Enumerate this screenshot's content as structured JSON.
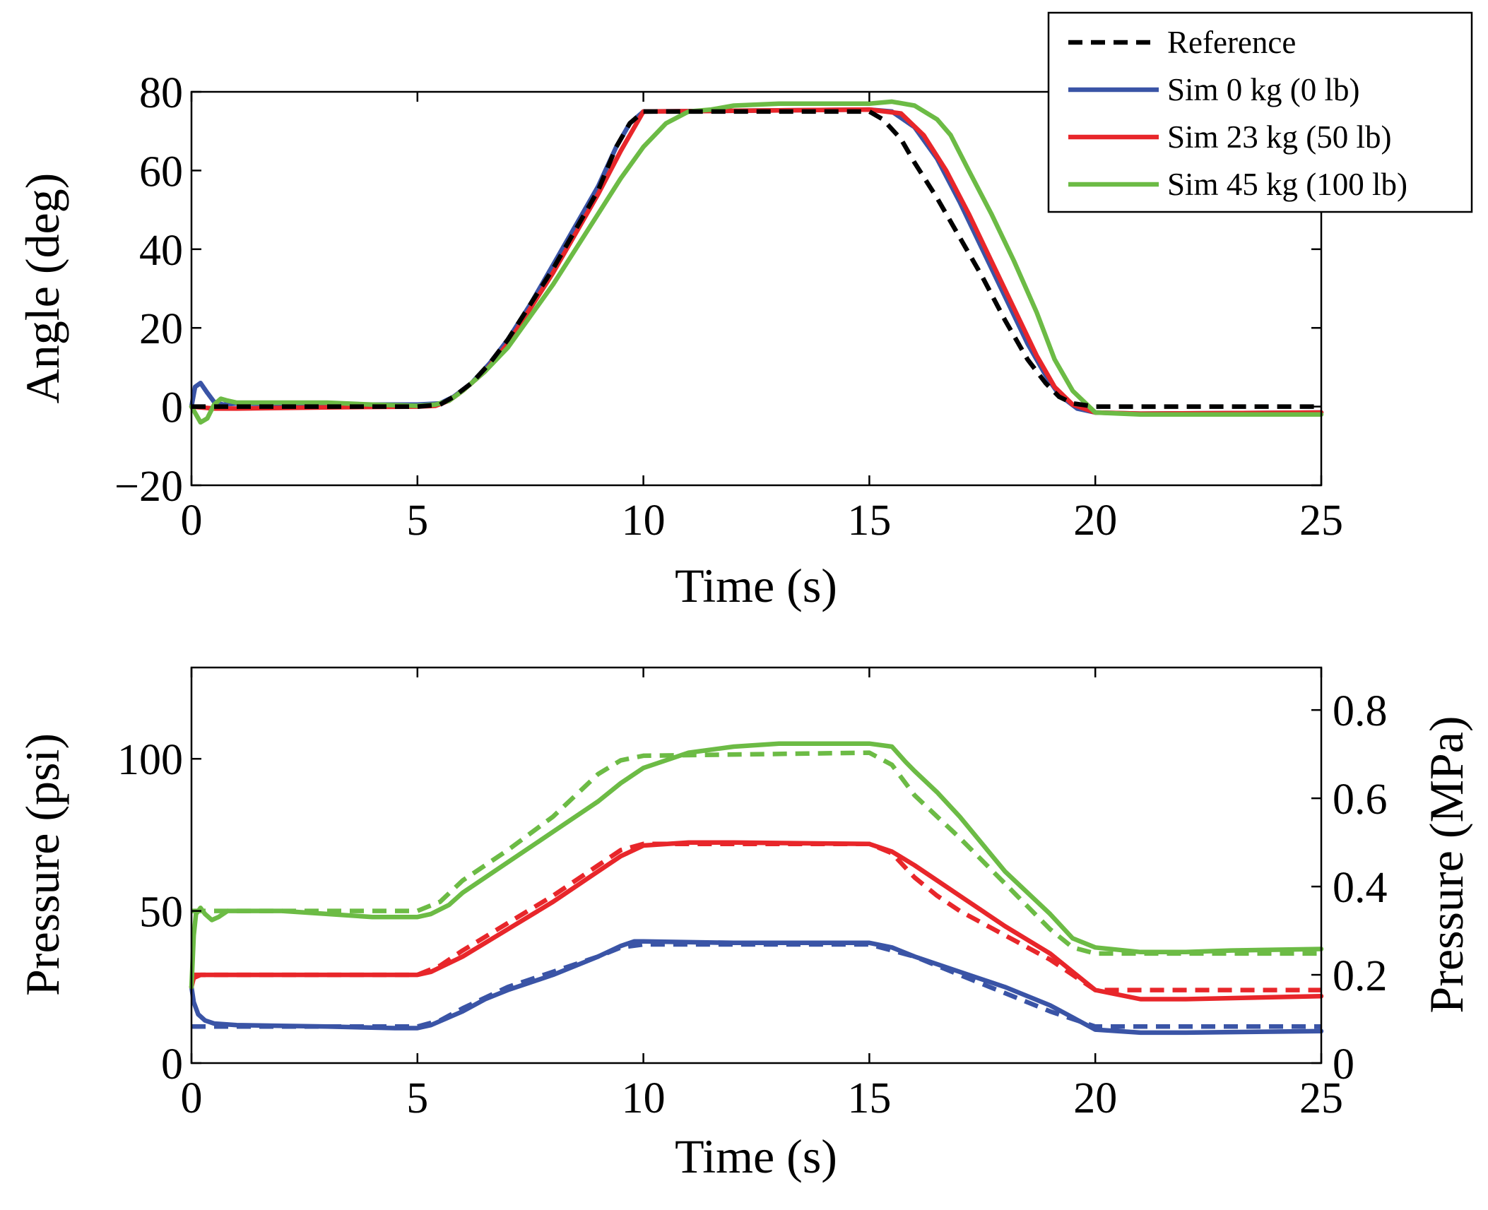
{
  "chart_data": [
    {
      "type": "line",
      "title": "",
      "xlabel": "Time (s)",
      "ylabel": "Angle (deg)",
      "xlim": [
        0,
        25
      ],
      "ylim": [
        -20,
        80
      ],
      "xticks": [
        0,
        5,
        10,
        15,
        20,
        25
      ],
      "xtick_labels": [
        "0",
        "5",
        "10",
        "15",
        "20",
        "25"
      ],
      "yticks": [
        -20,
        0,
        20,
        40,
        60,
        80
      ],
      "ytick_labels": [
        "−20",
        "0",
        "20",
        "40",
        "60",
        "80"
      ],
      "grid": false,
      "legend": {
        "position": "top-right",
        "entries": [
          {
            "label": "Reference",
            "color": "#000000",
            "dash": true
          },
          {
            "label": "Sim 0 kg (0 lb)",
            "color": "#3a54a6",
            "dash": false
          },
          {
            "label": "Sim 23 kg (50 lb)",
            "color": "#e8262a",
            "dash": false
          },
          {
            "label": "Sim 45 kg (100 lb)",
            "color": "#6cbb45",
            "dash": false
          }
        ]
      },
      "series": [
        {
          "name": "Reference",
          "color": "#000000",
          "dash": true,
          "x": [
            0,
            5,
            5.5,
            5.8,
            6.2,
            6.6,
            7,
            7.5,
            8,
            8.5,
            9,
            9.4,
            9.7,
            10,
            15,
            15.3,
            15.7,
            16,
            16.5,
            17,
            17.5,
            18,
            18.5,
            18.9,
            19.2,
            19.5,
            20,
            25
          ],
          "y": [
            0,
            0,
            0.5,
            2.5,
            6,
            11,
            17,
            26,
            35,
            45,
            55,
            66,
            72,
            75,
            75,
            73,
            68,
            62,
            53,
            43,
            33,
            22,
            12,
            6,
            2.5,
            0.8,
            0,
            0
          ]
        },
        {
          "name": "Sim 0 kg (0 lb)",
          "color": "#3a54a6",
          "dash": false,
          "x": [
            0,
            0.08,
            0.2,
            0.35,
            0.5,
            0.7,
            1,
            3,
            5,
            5.5,
            5.8,
            6.2,
            6.6,
            7,
            7.5,
            8,
            8.5,
            9,
            9.4,
            9.7,
            10,
            15,
            15.5,
            16,
            16.5,
            17,
            17.5,
            18,
            18.5,
            18.9,
            19.2,
            19.6,
            20,
            21,
            25
          ],
          "y": [
            0,
            5,
            6,
            3.5,
            1.2,
            0.5,
            0.8,
            0.5,
            0.5,
            0.8,
            2.5,
            6,
            11,
            17,
            26,
            36,
            46,
            56,
            66,
            72,
            75,
            75.5,
            75,
            71,
            63,
            52,
            40,
            28,
            16,
            8,
            3,
            -0.5,
            -1.5,
            -1.8,
            -1.5
          ]
        },
        {
          "name": "Sim 23 kg (50 lb)",
          "color": "#e8262a",
          "dash": false,
          "x": [
            0,
            0.5,
            1,
            3,
            5,
            5.4,
            5.7,
            6,
            6.5,
            7,
            7.5,
            8,
            8.5,
            9,
            9.5,
            10,
            15,
            15.7,
            16.2,
            16.7,
            17.2,
            17.7,
            18.2,
            18.7,
            19.1,
            19.5,
            20,
            21,
            25
          ],
          "y": [
            0,
            -0.5,
            -0.5,
            -0.2,
            0,
            0.2,
            1.5,
            4,
            9,
            16,
            25,
            34,
            44,
            54,
            65,
            75,
            75.5,
            74.5,
            69,
            60,
            49,
            37,
            25,
            13,
            5,
            0.5,
            -1.5,
            -1.8,
            -1.5
          ]
        },
        {
          "name": "Sim 45 kg (100 lb)",
          "color": "#6cbb45",
          "dash": false,
          "x": [
            0,
            0.1,
            0.2,
            0.35,
            0.5,
            0.65,
            0.8,
            1,
            2,
            3,
            4,
            5,
            5.4,
            5.7,
            6,
            6.5,
            7,
            7.5,
            8,
            8.5,
            9,
            9.5,
            10,
            10.5,
            11,
            11.5,
            12,
            13,
            14,
            15,
            15.5,
            16,
            16.5,
            16.8,
            17.2,
            17.7,
            18.2,
            18.7,
            19.1,
            19.5,
            20,
            21,
            25
          ],
          "y": [
            0,
            -2,
            -4,
            -3,
            0.5,
            2,
            1.5,
            1,
            1,
            1,
            0.5,
            0.2,
            0.5,
            1.5,
            4,
            9,
            15,
            23,
            31,
            40,
            49,
            58,
            66,
            72,
            75,
            75.5,
            76.5,
            77,
            77,
            77,
            77.5,
            76.5,
            73,
            69,
            60,
            49,
            37,
            24,
            12,
            4,
            -1.5,
            -2,
            -2
          ]
        }
      ]
    },
    {
      "type": "line",
      "title": "",
      "xlabel": "Time (s)",
      "ylabel": "Pressure (psi)",
      "ylabel_right": "Pressure (MPa)",
      "xlim": [
        0,
        25
      ],
      "ylim": [
        0,
        130
      ],
      "ylim_right": [
        0,
        0.8963
      ],
      "xticks": [
        0,
        5,
        10,
        15,
        20,
        25
      ],
      "xtick_labels": [
        "0",
        "5",
        "10",
        "15",
        "20",
        "25"
      ],
      "yticks": [
        0,
        50,
        100
      ],
      "ytick_labels": [
        "0",
        "50",
        "100"
      ],
      "yticks_right": [
        0,
        0.2,
        0.4,
        0.6,
        0.8
      ],
      "ytick_labels_right": [
        "0",
        "0.2",
        "0.4",
        "0.6",
        "0.8"
      ],
      "grid": false,
      "series": [
        {
          "color": "#3a54a6",
          "dash": true,
          "x": [
            0,
            5,
            5.5,
            6,
            7,
            8,
            9,
            9.5,
            10,
            15,
            16,
            17,
            18,
            19,
            20,
            25
          ],
          "y": [
            12,
            12,
            14,
            18,
            25,
            30,
            35,
            38,
            39,
            39,
            35,
            29,
            23,
            17,
            12,
            12
          ]
        },
        {
          "color": "#3a54a6",
          "dash": false,
          "x": [
            0,
            0.05,
            0.15,
            0.3,
            0.5,
            1,
            3,
            4.5,
            5,
            5.3,
            6,
            6.5,
            7,
            8,
            9,
            9.5,
            9.8,
            10,
            12,
            15,
            15.5,
            16,
            17,
            18,
            19,
            19.5,
            20,
            21,
            22,
            25
          ],
          "y": [
            25,
            20,
            16,
            14,
            13,
            12.5,
            12,
            11.5,
            11.5,
            12.5,
            17,
            21,
            24,
            29,
            35,
            38.5,
            40,
            40,
            39.5,
            39.5,
            38,
            35,
            30,
            25,
            19,
            15,
            11,
            10,
            10,
            10.5
          ]
        },
        {
          "color": "#e8262a",
          "dash": true,
          "x": [
            0,
            5,
            5.5,
            6,
            7,
            8,
            9,
            9.5,
            10,
            15,
            15.5,
            16,
            16.5,
            17,
            18,
            19,
            19.5,
            20,
            25
          ],
          "y": [
            29,
            29,
            32,
            37,
            46,
            55,
            65,
            70,
            72,
            72,
            69,
            61,
            55,
            50,
            42,
            34,
            29,
            24,
            24
          ]
        },
        {
          "color": "#e8262a",
          "dash": false,
          "x": [
            0,
            0.05,
            0.2,
            0.5,
            1,
            3,
            5,
            5.3,
            6,
            7,
            8,
            9,
            9.5,
            10,
            11,
            12,
            15,
            15.5,
            16,
            16.5,
            17,
            17.5,
            18,
            19,
            19.5,
            20,
            21,
            22,
            25
          ],
          "y": [
            25,
            28,
            29,
            29,
            29,
            29,
            29,
            30,
            35,
            44,
            53,
            63,
            68,
            71.5,
            72.5,
            72.5,
            72,
            69.5,
            65,
            60,
            55,
            50,
            45,
            36,
            30,
            24,
            21,
            21,
            22
          ]
        },
        {
          "color": "#6cbb45",
          "dash": true,
          "x": [
            0,
            5,
            5.5,
            6,
            7,
            8,
            9,
            9.5,
            10,
            15,
            15.5,
            16,
            17,
            18,
            19,
            19.5,
            20,
            25
          ],
          "y": [
            50,
            50,
            53,
            60,
            70,
            81,
            95,
            99.5,
            101,
            102,
            98,
            88,
            74,
            59,
            44,
            38,
            36,
            36
          ]
        },
        {
          "color": "#6cbb45",
          "dash": false,
          "x": [
            0,
            0.05,
            0.1,
            0.2,
            0.3,
            0.45,
            0.6,
            0.8,
            1,
            2,
            3,
            4,
            5,
            5.3,
            5.7,
            6,
            7,
            8,
            9,
            9.5,
            10,
            11,
            12,
            13,
            14,
            15,
            15.5,
            15.8,
            16,
            16.5,
            17,
            17.5,
            18,
            19,
            19.5,
            20,
            21,
            22,
            23,
            25
          ],
          "y": [
            25,
            42,
            49,
            51,
            49,
            47,
            48,
            50,
            50,
            50,
            49,
            48,
            48,
            49,
            52,
            56,
            66,
            76,
            86,
            92,
            97,
            102,
            104,
            105,
            105,
            105,
            104,
            99,
            96,
            89,
            81,
            72,
            63,
            49,
            41,
            38,
            36.5,
            36.5,
            37,
            37.5
          ]
        }
      ]
    }
  ]
}
